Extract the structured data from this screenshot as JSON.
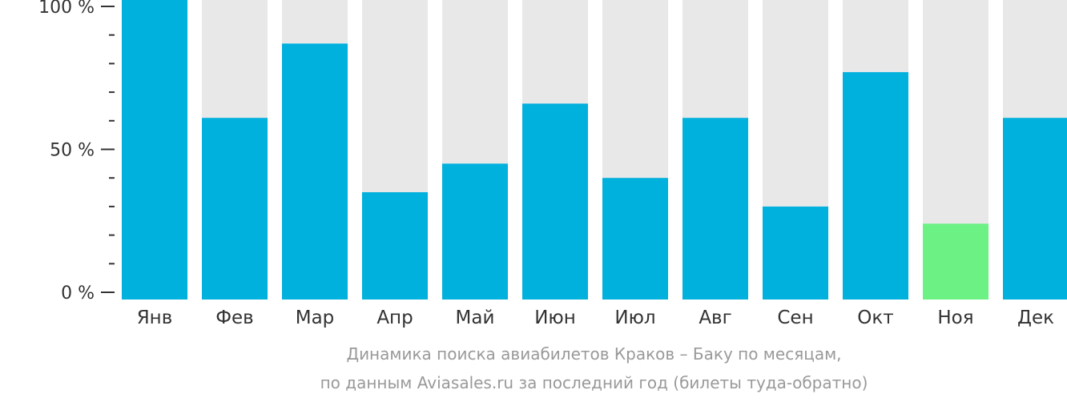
{
  "chart_data": {
    "type": "bar",
    "categories": [
      "Янв",
      "Фев",
      "Мар",
      "Апр",
      "Май",
      "Июн",
      "Июл",
      "Авг",
      "Сен",
      "Окт",
      "Ноя",
      "Дек"
    ],
    "values": [
      100,
      61,
      87,
      35,
      45,
      66,
      40,
      61,
      30,
      77,
      24,
      61
    ],
    "ylim": [
      0,
      100
    ],
    "y_ticks": [
      "0 %",
      "50 %",
      "100 %"
    ],
    "highlight_category": "Ноя",
    "colors": {
      "bar": "#00b0dd",
      "highlight": "#6cf185",
      "track": "#e8e8e9",
      "axis": "#333333"
    },
    "caption_line1": "Динамика поиска авиабилетов Краков – Баку по месяцам,",
    "caption_line2": "по данным Aviasales.ru за последний год (билеты туда-обратно)"
  }
}
